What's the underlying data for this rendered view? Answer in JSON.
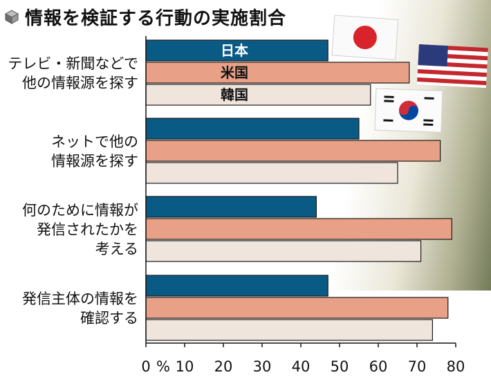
{
  "title": "情報を検証する行動の実施割合",
  "icons": {
    "title_icon": "cube-icon"
  },
  "colors": {
    "japan": "#0a5a86",
    "usa": "#e8a086",
    "korea": "#efe5dc",
    "bar_stroke": "#1a1a1a",
    "axis": "#111111"
  },
  "chart_data": {
    "type": "bar",
    "orientation": "horizontal",
    "title": "情報を検証する行動の実施割合",
    "categories": [
      [
        "テレビ・新聞などで",
        "他の情報源を探す"
      ],
      [
        "ネットで他の",
        "情報源を探す"
      ],
      [
        "何のために情報が",
        "発信されたかを",
        "考える"
      ],
      [
        "発信主体の情報を",
        "確認する"
      ]
    ],
    "series": [
      {
        "name": "日本",
        "values": [
          47,
          55,
          44,
          47
        ]
      },
      {
        "name": "米国",
        "values": [
          68,
          76,
          79,
          78
        ]
      },
      {
        "name": "韓国",
        "values": [
          58,
          65,
          71,
          74
        ]
      }
    ],
    "xlim": [
      0,
      80
    ],
    "x_ticks": [
      0,
      10,
      20,
      30,
      40,
      50,
      60,
      70,
      80
    ],
    "x_unit": "%",
    "grid": false,
    "legend": "inside-first-group"
  }
}
